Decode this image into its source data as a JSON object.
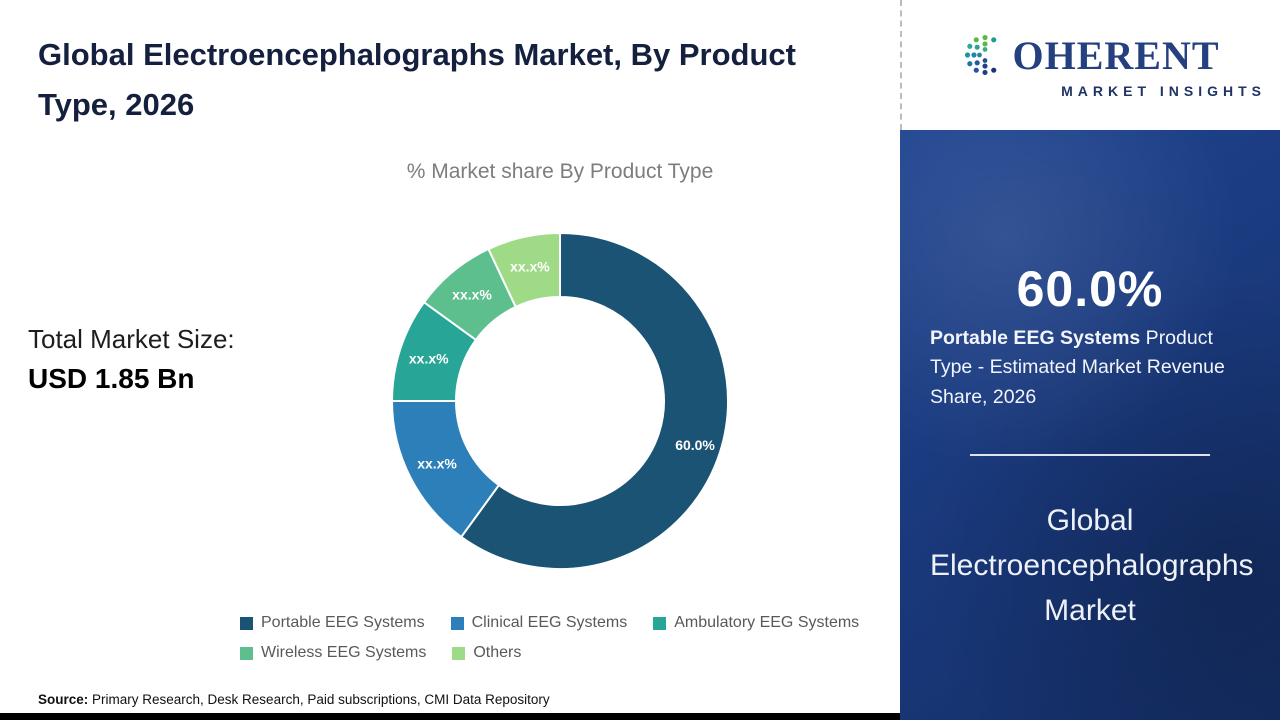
{
  "header": {
    "title": "Global Electroencephalographs Market, By Product Type, 2026"
  },
  "logo": {
    "initial": "C",
    "name_rest": "OHERENT",
    "tagline": "MARKET INSIGHTS"
  },
  "main": {
    "total_label": "Total Market Size:",
    "total_value": "USD 1.85 Bn",
    "source_label": "Source:",
    "source_text": " Primary Research, Desk Research, Paid subscriptions, CMI Data Repository"
  },
  "sidebar": {
    "highlight_value": "60.0%",
    "highlight_bold": "Portable EEG Systems",
    "highlight_rest": " Product Type - Estimated Market Revenue Share, 2026",
    "footer_title": "Global Electroencephalographs Market"
  },
  "chart_data": {
    "type": "pie",
    "donut": true,
    "title": "% Market share By Product Type",
    "categories": [
      "Portable EEG Systems",
      "Clinical EEG Systems",
      "Ambulatory EEG Systems",
      "Wireless EEG Systems",
      "Others"
    ],
    "values": [
      60.0,
      15.0,
      10.0,
      8.0,
      7.0
    ],
    "labels": [
      "60.0%",
      "xx.x%",
      "xx.x%",
      "xx.x%",
      "xx.x%"
    ],
    "colors": [
      "#1b5374",
      "#2c7fb8",
      "#27a596",
      "#5dbe8e",
      "#9fdb87"
    ],
    "legend_position": "bottom",
    "start_angle": "top",
    "direction": "clockwise"
  }
}
